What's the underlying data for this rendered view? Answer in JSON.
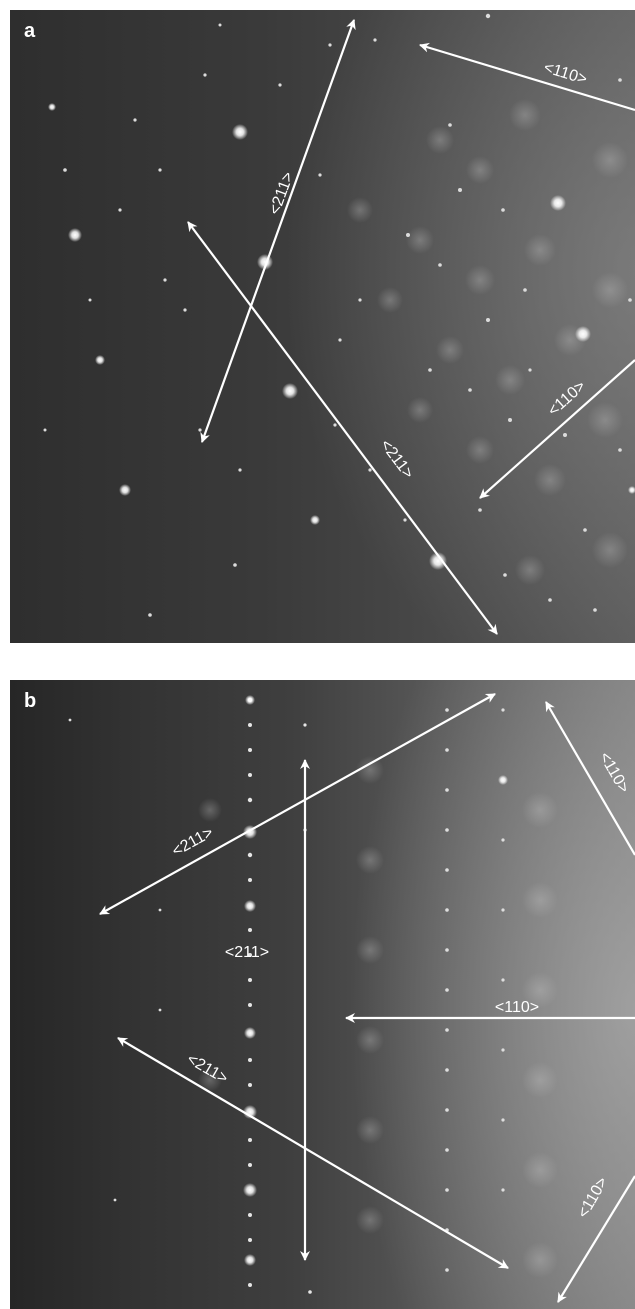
{
  "panels": [
    {
      "label": "a",
      "annotations": [
        "<211>",
        "<211>",
        "<110>",
        "<110>"
      ]
    },
    {
      "label": "b",
      "annotations": [
        "<211>",
        "<211>",
        "<211>",
        "<110>",
        "<110>",
        "<110>"
      ]
    }
  ],
  "colors": {
    "arrow": "#ffffff",
    "spot": "#ffffff"
  }
}
